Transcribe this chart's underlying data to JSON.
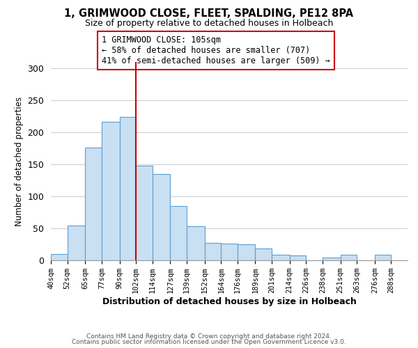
{
  "title": "1, GRIMWOOD CLOSE, FLEET, SPALDING, PE12 8PA",
  "subtitle": "Size of property relative to detached houses in Holbeach",
  "xlabel": "Distribution of detached houses by size in Holbeach",
  "ylabel": "Number of detached properties",
  "bar_edges": [
    40,
    52,
    65,
    77,
    90,
    102,
    114,
    127,
    139,
    152,
    164,
    176,
    189,
    201,
    214,
    226,
    238,
    251,
    263,
    276,
    288
  ],
  "bar_heights": [
    10,
    55,
    177,
    217,
    224,
    148,
    135,
    85,
    54,
    27,
    26,
    25,
    19,
    9,
    8,
    0,
    5,
    9,
    0,
    9
  ],
  "bar_color": "#c9dff2",
  "bar_edge_color": "#5a9fd4",
  "property_line_x": 102,
  "property_line_color": "#cc0000",
  "ylim": [
    0,
    310
  ],
  "yticks": [
    0,
    50,
    100,
    150,
    200,
    250,
    300
  ],
  "annotation_title": "1 GRIMWOOD CLOSE: 105sqm",
  "annotation_line1": "← 58% of detached houses are smaller (707)",
  "annotation_line2": "41% of semi-detached houses are larger (509) →",
  "annotation_box_color": "#ffffff",
  "annotation_box_edge_color": "#cc0000",
  "footer_line1": "Contains HM Land Registry data © Crown copyright and database right 2024.",
  "footer_line2": "Contains public sector information licensed under the Open Government Licence v3.0.",
  "tick_labels": [
    "40sqm",
    "52sqm",
    "65sqm",
    "77sqm",
    "90sqm",
    "102sqm",
    "114sqm",
    "127sqm",
    "139sqm",
    "152sqm",
    "164sqm",
    "176sqm",
    "189sqm",
    "201sqm",
    "214sqm",
    "226sqm",
    "238sqm",
    "251sqm",
    "263sqm",
    "276sqm",
    "288sqm"
  ],
  "background_color": "#ffffff",
  "grid_color": "#d0d0d0",
  "xlim_left": 40,
  "xlim_right": 300
}
